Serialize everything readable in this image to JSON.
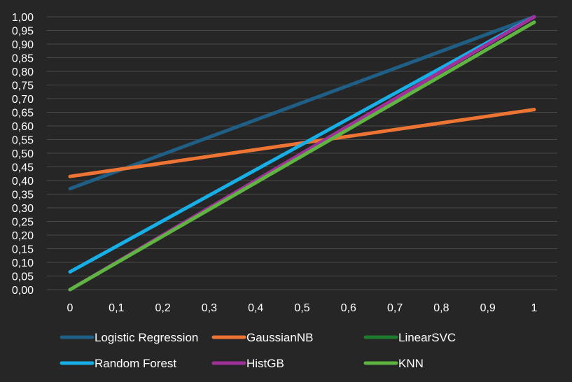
{
  "chart_data": {
    "type": "line",
    "title": "",
    "xlabel": "",
    "ylabel": "",
    "xlim": [
      0,
      1
    ],
    "ylim": [
      0,
      1
    ],
    "grid": true,
    "legend_position": "bottom",
    "x_ticks": [
      "0",
      "0,1",
      "0,2",
      "0,3",
      "0,4",
      "0,5",
      "0,6",
      "0,7",
      "0,8",
      "0,9",
      "1"
    ],
    "y_ticks": [
      "0,00",
      "0,05",
      "0,10",
      "0,15",
      "0,20",
      "0,25",
      "0,30",
      "0,35",
      "0,40",
      "0,45",
      "0,50",
      "0,55",
      "0,60",
      "0,65",
      "0,70",
      "0,75",
      "0,80",
      "0,85",
      "0,90",
      "0,95",
      "1,00"
    ],
    "series": [
      {
        "name": "Logistic Regression",
        "color": "#1f5f86",
        "x": [
          0,
          1
        ],
        "y": [
          0.37,
          1.0
        ]
      },
      {
        "name": "GaussianNB",
        "color": "#ee7434",
        "x": [
          0,
          1
        ],
        "y": [
          0.415,
          0.66
        ]
      },
      {
        "name": "LinearSVC",
        "color": "#1e7a2e",
        "x": [
          0,
          1
        ],
        "y": [
          0.0,
          0.98
        ]
      },
      {
        "name": "Random Forest",
        "color": "#18aee6",
        "x": [
          0,
          1
        ],
        "y": [
          0.065,
          1.0
        ]
      },
      {
        "name": "HistGB",
        "color": "#a0309a",
        "x": [
          0,
          1
        ],
        "y": [
          0.0,
          1.0
        ]
      },
      {
        "name": "KNN",
        "color": "#5fb442",
        "x": [
          0,
          1
        ],
        "y": [
          0.0,
          0.98
        ]
      }
    ]
  }
}
